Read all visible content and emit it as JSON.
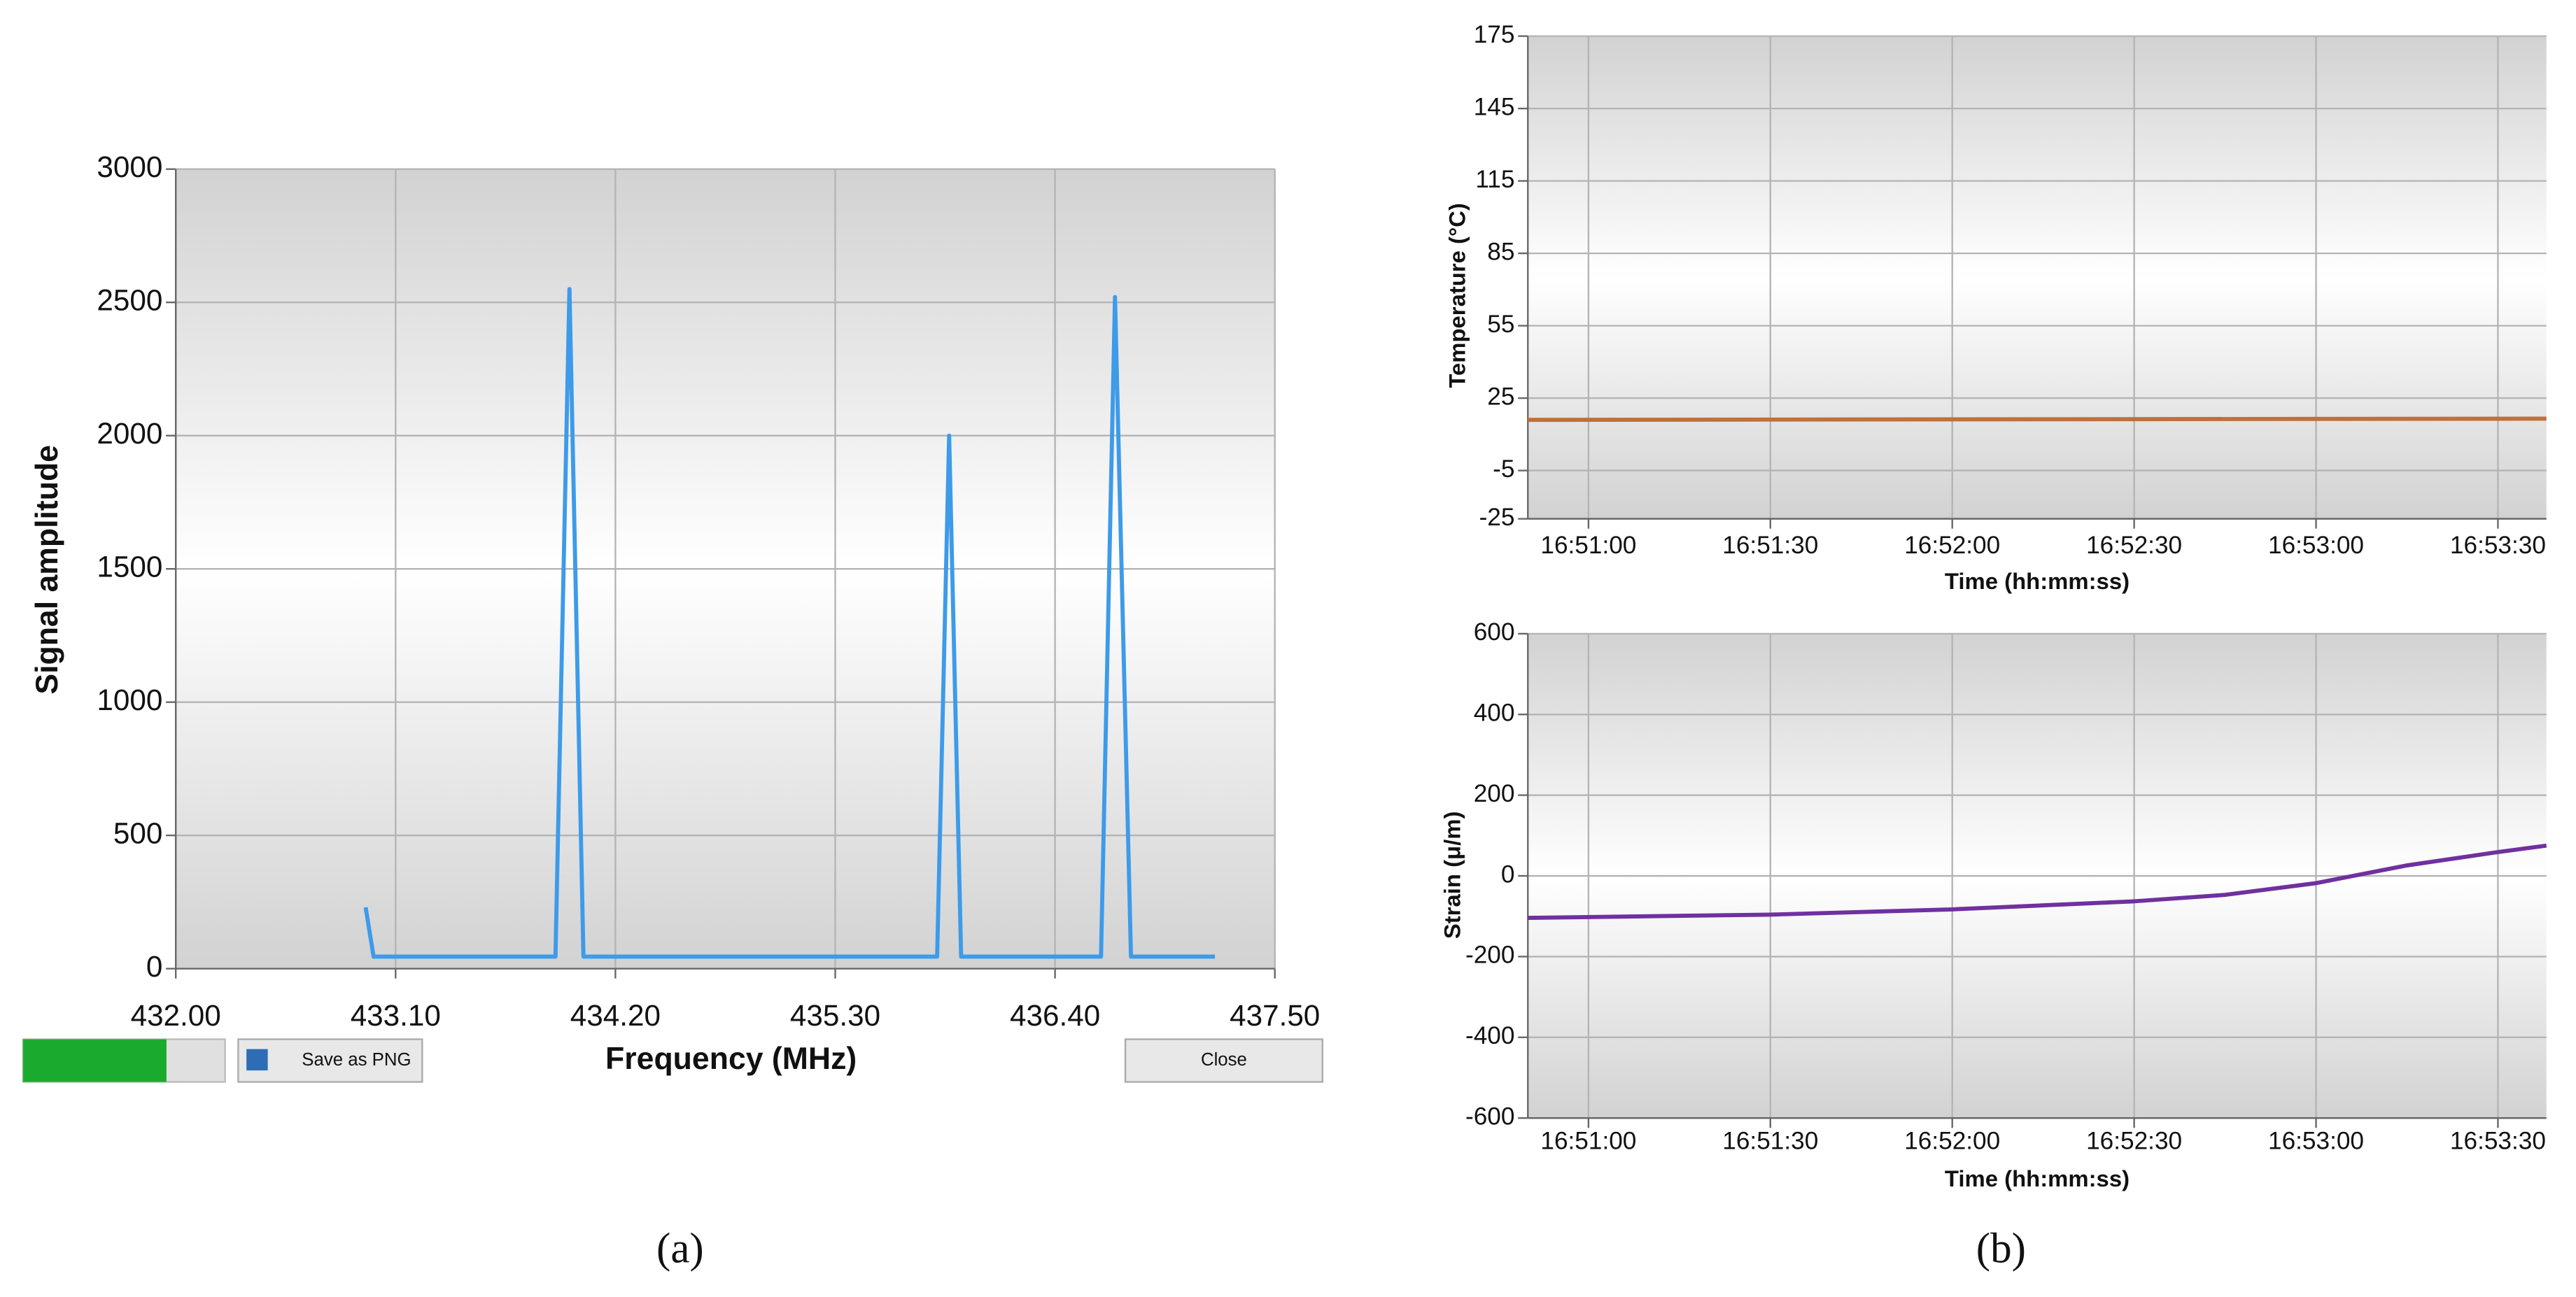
{
  "chart_data": [
    {
      "type": "line",
      "x_label": "Frequency (MHz)",
      "y_label": "Signal amplitude",
      "x": [
        432.95,
        432.99,
        433.9,
        433.97,
        434.04,
        435.81,
        435.87,
        435.93,
        436.63,
        436.7,
        436.78,
        437.2
      ],
      "series": [
        {
          "name": "Signal",
          "color": "#3d9be9",
          "values": [
            230,
            45,
            45,
            2550,
            45,
            45,
            2000,
            45,
            45,
            2520,
            45,
            45
          ]
        }
      ],
      "xlim": [
        432,
        437.5
      ],
      "xticks": [
        {
          "value": 432,
          "label": "432.00"
        },
        {
          "value": 433.1,
          "label": "433.10"
        },
        {
          "value": 434.2,
          "label": "434.20"
        },
        {
          "value": 435.3,
          "label": "435.30"
        },
        {
          "value": 436.4,
          "label": "436.40"
        },
        {
          "value": 437.5,
          "label": "437.50"
        }
      ],
      "ylim": [
        0,
        3000
      ],
      "yticks": [
        0,
        500,
        1000,
        1500,
        2000,
        2500,
        3000
      ],
      "grid": true
    },
    {
      "type": "line",
      "x_label": "Time (hh:mm:ss)",
      "y_label": "Temperature (°C)",
      "x": [
        "16:50:50",
        "16:52:00",
        "16:53:38"
      ],
      "series": [
        {
          "name": "Temperature",
          "color": "#c0703a",
          "values": [
            16,
            16.2,
            16.5
          ]
        }
      ],
      "xlim": [
        "16:50:50",
        "16:53:38"
      ],
      "xticks": [
        "16:51:00",
        "16:51:30",
        "16:52:00",
        "16:52:30",
        "16:53:00",
        "16:53:30"
      ],
      "ylim": [
        -25,
        175
      ],
      "yticks": [
        -25,
        -5,
        25,
        55,
        85,
        115,
        145,
        175
      ],
      "grid": true
    },
    {
      "type": "line",
      "x_label": "Time (hh:mm:ss)",
      "y_label": "Strain (μ/m)",
      "x": [
        "16:50:50",
        "16:51:30",
        "16:52:00",
        "16:52:30",
        "16:52:45",
        "16:53:00",
        "16:53:15",
        "16:53:30",
        "16:53:38"
      ],
      "series": [
        {
          "name": "Strain",
          "color": "#7030a0",
          "values": [
            -104,
            -96,
            -83,
            -63,
            -47,
            -18,
            26,
            59,
            75
          ]
        }
      ],
      "xlim": [
        "16:50:50",
        "16:53:38"
      ],
      "xticks": [
        "16:51:00",
        "16:51:30",
        "16:52:00",
        "16:52:30",
        "16:53:00",
        "16:53:30"
      ],
      "ylim": [
        -600,
        600
      ],
      "yticks": [
        -600,
        -400,
        -200,
        0,
        200,
        400,
        600
      ],
      "grid": true
    }
  ],
  "ui": {
    "progress": 71,
    "save_button": "Save as PNG",
    "close_button": "Close"
  },
  "captions": [
    "(a)",
    "(b)"
  ]
}
